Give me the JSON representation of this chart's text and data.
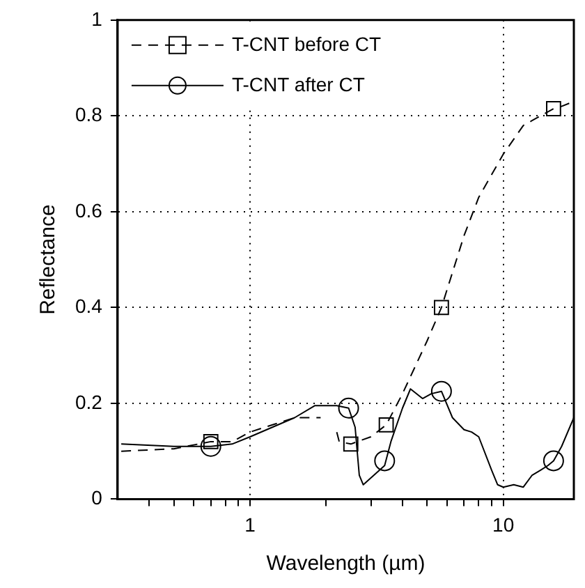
{
  "chart_data": {
    "type": "line",
    "xlabel": "Wavelength (µm)",
    "ylabel": "Reflectance",
    "log": "x",
    "xlim": [
      0.31,
      19
    ],
    "xticks": [
      {
        "value": 0.4,
        "label": null
      },
      {
        "value": 0.5,
        "label": null
      },
      {
        "value": 0.6,
        "label": null
      },
      {
        "value": 0.7,
        "label": null
      },
      {
        "value": 0.8,
        "label": null
      },
      {
        "value": 0.9,
        "label": null
      },
      1,
      {
        "value": 2,
        "label": null
      },
      {
        "value": 3,
        "label": null
      },
      {
        "value": 4,
        "label": null
      },
      {
        "value": 5,
        "label": null
      },
      {
        "value": 6,
        "label": null
      },
      {
        "value": 7,
        "label": null
      },
      {
        "value": 8,
        "label": null
      },
      {
        "value": 9,
        "label": null
      },
      10
    ],
    "ylim": [
      0,
      1
    ],
    "yticks": [
      0,
      0.2,
      0.4,
      0.6,
      0.8,
      1
    ],
    "grid": true,
    "legend": "top left",
    "series": [
      {
        "name": "T-CNT before CT",
        "type": "line",
        "line_style": "dashed",
        "color": "#000000",
        "x": [
          0.31,
          0.5,
          0.7,
          0.85,
          1.0,
          1.5,
          1.9,
          2.0,
          2.2,
          2.25,
          2.5,
          3.0,
          3.45,
          4.0,
          5.0,
          5.7,
          7.0,
          8.0,
          10.0,
          12.0,
          15.8,
          17.0,
          19.0
        ],
        "values": [
          0.1,
          0.105,
          0.12,
          0.12,
          0.14,
          0.17,
          0.17,
          null,
          0.14,
          0.12,
          0.115,
          0.13,
          0.155,
          0.22,
          0.33,
          0.4,
          0.55,
          0.63,
          0.72,
          0.78,
          0.815,
          0.82,
          0.83
        ]
      },
      {
        "type": "scatter",
        "marker": "square",
        "color": "#000000",
        "x": [
          0.7,
          2.5,
          3.45,
          5.7,
          15.8
        ],
        "values": [
          0.12,
          0.115,
          0.155,
          0.4,
          0.815
        ]
      },
      {
        "name": "T-CNT after CT",
        "type": "line",
        "line_style": "solid",
        "color": "#000000",
        "x": [
          0.31,
          0.5,
          0.7,
          0.85,
          1.0,
          1.5,
          1.8,
          2.2,
          2.45,
          2.6,
          2.7,
          2.8,
          3.4,
          3.6,
          4.0,
          4.3,
          4.8,
          5.2,
          5.7,
          6.3,
          7.0,
          7.5,
          8.0,
          9.0,
          9.5,
          10.0,
          11.0,
          12.0,
          13.0,
          14.0,
          15.0,
          15.8,
          17.0,
          19.0
        ],
        "values": [
          0.115,
          0.11,
          0.11,
          0.115,
          0.13,
          0.17,
          0.195,
          0.195,
          0.19,
          0.15,
          0.05,
          0.03,
          0.07,
          0.12,
          0.19,
          0.23,
          0.21,
          0.22,
          0.225,
          0.17,
          0.145,
          0.14,
          0.13,
          0.06,
          0.03,
          0.025,
          0.03,
          0.025,
          0.05,
          0.06,
          0.07,
          0.08,
          0.11,
          0.17
        ]
      },
      {
        "type": "scatter",
        "marker": "circle",
        "color": "#000000",
        "x": [
          0.7,
          2.45,
          3.4,
          5.7,
          15.8
        ],
        "values": [
          0.11,
          0.19,
          0.08,
          0.225,
          0.08
        ]
      }
    ]
  }
}
